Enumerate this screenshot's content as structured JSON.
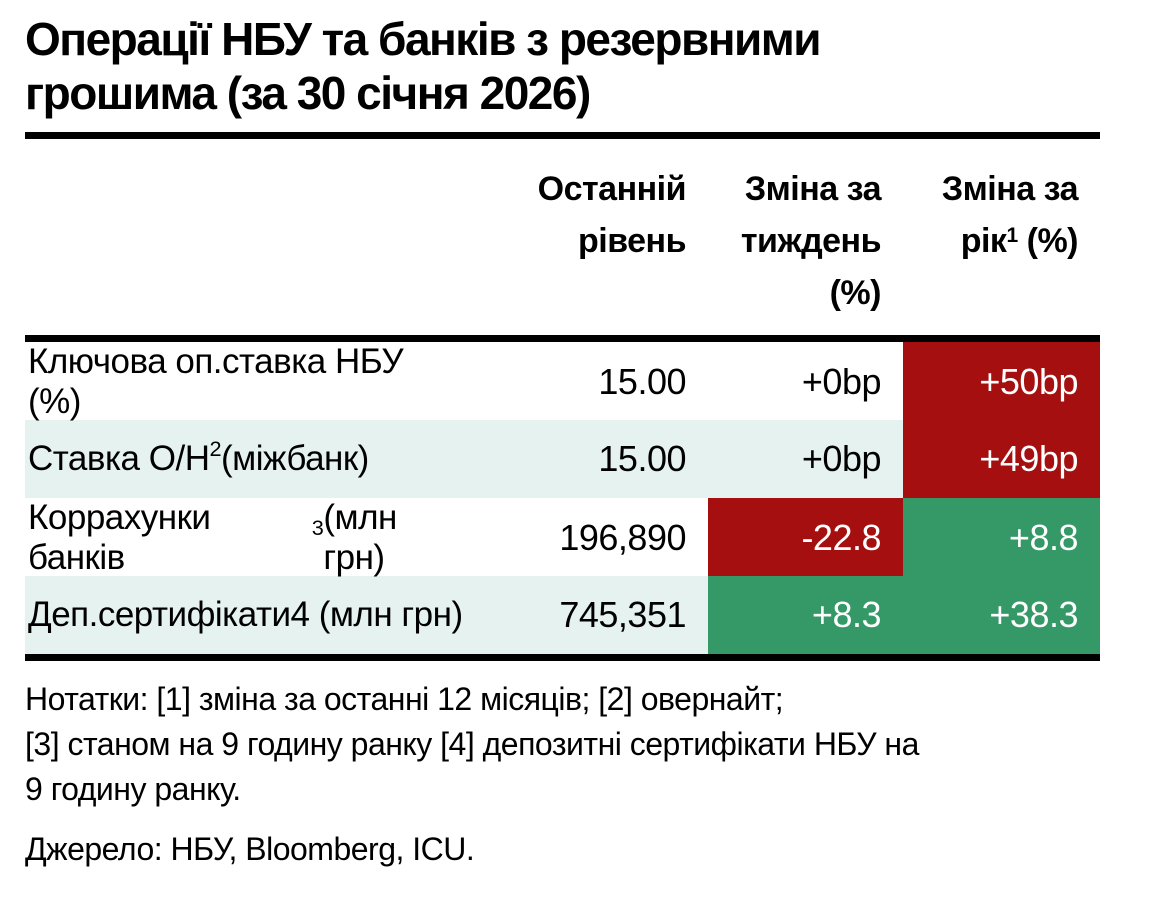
{
  "title": {
    "line1": "Операції НБУ та банків з резервними",
    "line2": "грошима (за 30 січня 2026)"
  },
  "table": {
    "header": {
      "col_level": {
        "line1": "Останній",
        "line2": "рівень"
      },
      "col_week": {
        "line1": "Зміна за",
        "line2": "тиждень",
        "line3": "(%)"
      },
      "col_year": {
        "line1": "Зміна за",
        "line2_pre": "рік",
        "line2_sup": "1",
        "line2_post": " (%)"
      }
    },
    "rows": [
      {
        "label_pre": "Ключова оп.ставка НБУ (%)",
        "label_sup": "",
        "label_post": "",
        "level": "15.00",
        "week": "+0bp",
        "week_bg": "none",
        "year": "+50bp",
        "year_bg": "red"
      },
      {
        "label_pre": "Ставка O/H",
        "label_sup": "2",
        "label_post": " (міжбанк)",
        "level": "15.00",
        "week": "+0bp",
        "week_bg": "none",
        "year": "+49bp",
        "year_bg": "red"
      },
      {
        "label_pre": "Коррахунки банків",
        "label_sup": "3",
        "label_post": " (млн грн)",
        "level": "196,890",
        "week": "-22.8",
        "week_bg": "red",
        "year": "+8.8",
        "year_bg": "green"
      },
      {
        "label_pre": "Деп.сертифікати4 (млн грн)",
        "label_sup": "",
        "label_post": "",
        "level": "745,351",
        "week": "+8.3",
        "week_bg": "green",
        "year": "+38.3",
        "year_bg": "green"
      }
    ]
  },
  "notes": {
    "line1": "Нотатки: [1] зміна за останні 12 місяців; [2] овернайт;",
    "line2": "[3] станом на 9 годину ранку [4] депозитні сертифікати НБУ на",
    "line3": "9 годину ранку."
  },
  "source": "Джерело: НБУ, Bloomberg, ICU.",
  "colors": {
    "accent_red": "#a50f0f",
    "accent_green": "#349967",
    "row_stripe": "#e6f2f0",
    "rule_black": "#000000",
    "cell_text_light": "#ffffff"
  }
}
